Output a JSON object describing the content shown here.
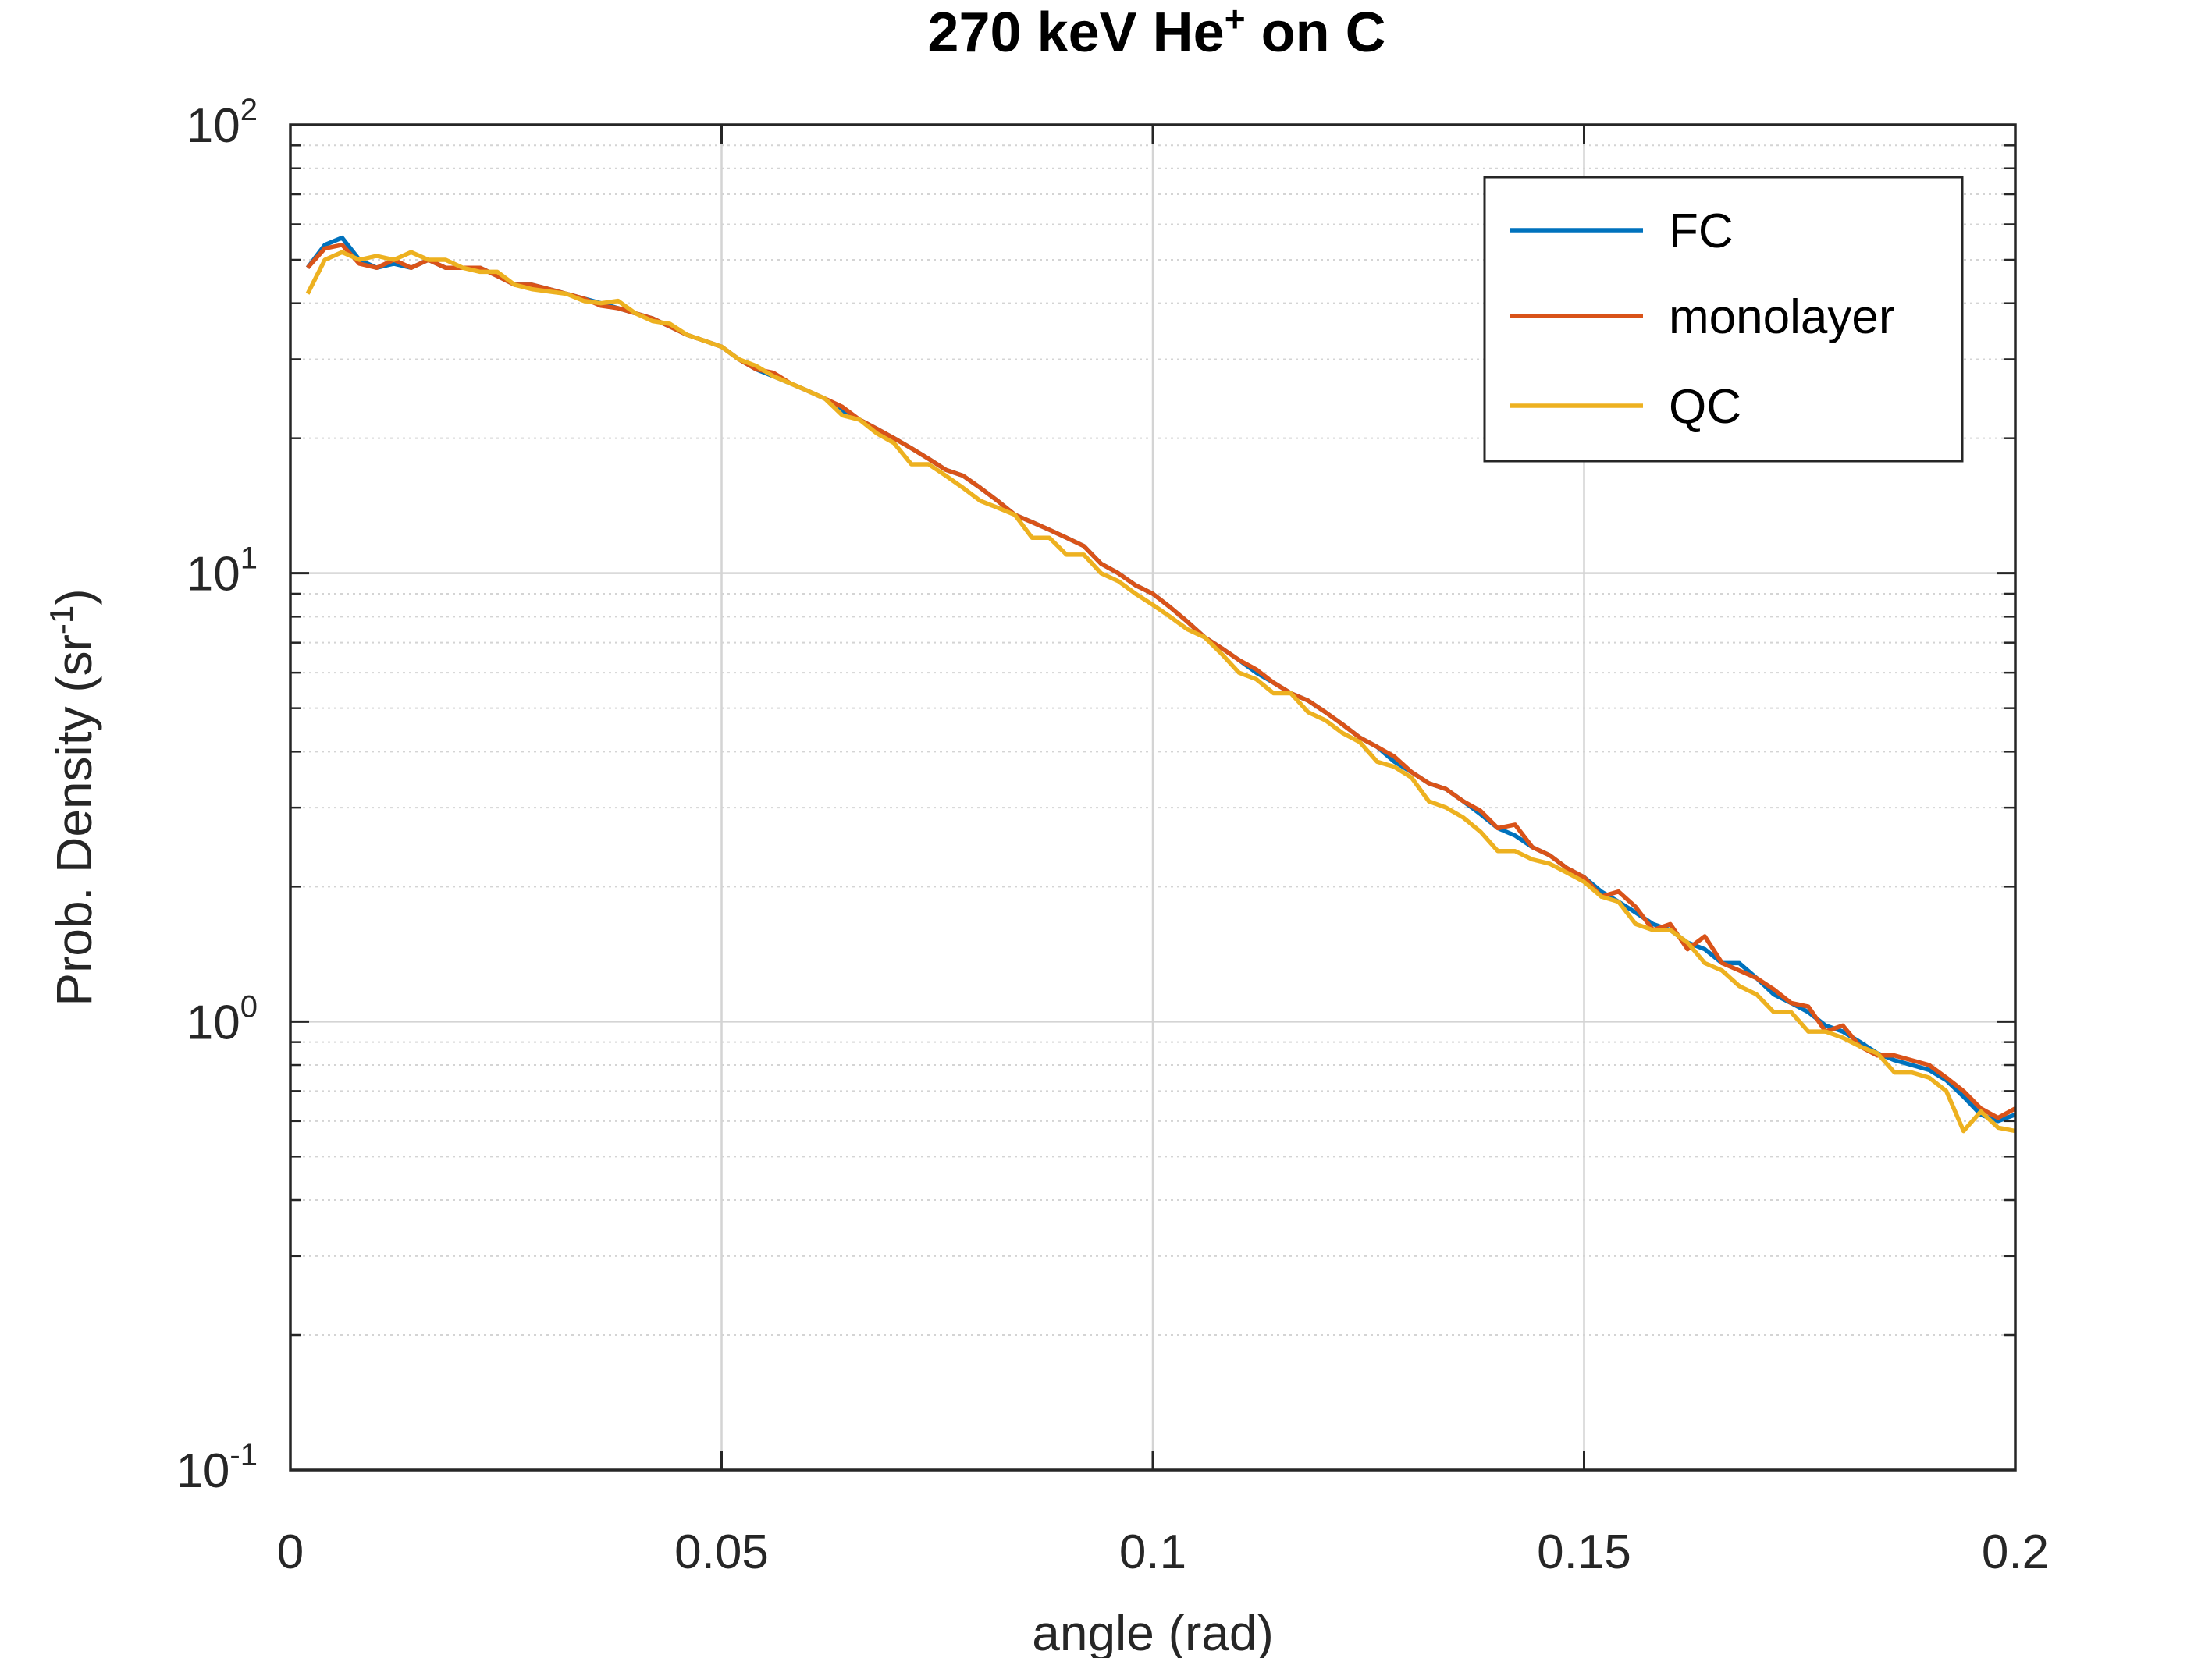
{
  "chart_data": {
    "type": "line",
    "title": {
      "main": "270 keV He",
      "sup": "+",
      "tail": " on C"
    },
    "xlabel": "angle (rad)",
    "ylabel": {
      "main": "Prob. Density (sr",
      "sup": "-1",
      "tail": ")"
    },
    "xlim": [
      0,
      0.2
    ],
    "ylim": [
      0.1,
      100
    ],
    "y_scale": "log",
    "x_ticks": [
      {
        "value": 0,
        "label": "0"
      },
      {
        "value": 0.05,
        "label": "0.05"
      },
      {
        "value": 0.1,
        "label": "0.1"
      },
      {
        "value": 0.15,
        "label": "0.15"
      },
      {
        "value": 0.2,
        "label": "0.2"
      }
    ],
    "y_ticks": [
      {
        "value": 0.1,
        "base": "10",
        "exp": "-1"
      },
      {
        "value": 1,
        "base": "10",
        "exp": "0"
      },
      {
        "value": 10,
        "base": "10",
        "exp": "1"
      },
      {
        "value": 100,
        "base": "10",
        "exp": "2"
      }
    ],
    "grid": true,
    "minor_grid": true,
    "legend_position": "top-right",
    "colors": {
      "FC": "#0072BD",
      "monolayer": "#D95319",
      "QC": "#EDB120",
      "axis": "#262626",
      "grid": "#d4d4d4"
    },
    "series": [
      {
        "name": "FC",
        "x": [
          0.002,
          0.004,
          0.006,
          0.008,
          0.01,
          0.012,
          0.014,
          0.016,
          0.018,
          0.02,
          0.022,
          0.024,
          0.026,
          0.028,
          0.03,
          0.032,
          0.034,
          0.036,
          0.038,
          0.04,
          0.042,
          0.044,
          0.046,
          0.048,
          0.05,
          0.052,
          0.054,
          0.056,
          0.058,
          0.06,
          0.062,
          0.064,
          0.066,
          0.068,
          0.07,
          0.072,
          0.074,
          0.076,
          0.078,
          0.08,
          0.082,
          0.084,
          0.086,
          0.088,
          0.09,
          0.092,
          0.094,
          0.096,
          0.098,
          0.1,
          0.102,
          0.104,
          0.106,
          0.108,
          0.11,
          0.112,
          0.114,
          0.116,
          0.118,
          0.12,
          0.122,
          0.124,
          0.126,
          0.128,
          0.13,
          0.132,
          0.134,
          0.136,
          0.138,
          0.14,
          0.142,
          0.144,
          0.146,
          0.148,
          0.15,
          0.152,
          0.154,
          0.156,
          0.158,
          0.16,
          0.162,
          0.164,
          0.166,
          0.168,
          0.17,
          0.172,
          0.174,
          0.176,
          0.178,
          0.18,
          0.182,
          0.184,
          0.186,
          0.188,
          0.19,
          0.192,
          0.194,
          0.196,
          0.198,
          0.2
        ],
        "y": [
          48,
          54,
          56,
          50,
          48,
          49,
          48,
          50,
          48,
          48,
          48,
          46,
          44,
          44,
          43,
          42,
          41,
          40,
          39,
          38,
          37,
          35.5,
          34,
          33,
          32,
          30,
          28.5,
          27.5,
          26.5,
          25.5,
          24.5,
          23,
          22,
          21,
          20,
          19,
          18,
          17,
          16.5,
          15.5,
          14.5,
          13.5,
          13,
          12.5,
          12,
          11.5,
          10.5,
          10,
          9.4,
          9,
          8.4,
          7.8,
          7.2,
          6.8,
          6.4,
          6,
          5.7,
          5.4,
          5.2,
          4.9,
          4.6,
          4.3,
          4.1,
          3.8,
          3.6,
          3.4,
          3.3,
          3.1,
          2.9,
          2.7,
          2.6,
          2.45,
          2.35,
          2.2,
          2.1,
          1.95,
          1.85,
          1.75,
          1.65,
          1.6,
          1.5,
          1.45,
          1.35,
          1.35,
          1.25,
          1.15,
          1.1,
          1.05,
          0.98,
          0.95,
          0.9,
          0.85,
          0.82,
          0.8,
          0.78,
          0.74,
          0.68,
          0.62,
          0.6,
          0.62
        ]
      },
      {
        "name": "monolayer",
        "x": [
          0.002,
          0.004,
          0.006,
          0.008,
          0.01,
          0.012,
          0.014,
          0.016,
          0.018,
          0.02,
          0.022,
          0.024,
          0.026,
          0.028,
          0.03,
          0.032,
          0.034,
          0.036,
          0.038,
          0.04,
          0.042,
          0.044,
          0.046,
          0.048,
          0.05,
          0.052,
          0.054,
          0.056,
          0.058,
          0.06,
          0.062,
          0.064,
          0.066,
          0.068,
          0.07,
          0.072,
          0.074,
          0.076,
          0.078,
          0.08,
          0.082,
          0.084,
          0.086,
          0.088,
          0.09,
          0.092,
          0.094,
          0.096,
          0.098,
          0.1,
          0.102,
          0.104,
          0.106,
          0.108,
          0.11,
          0.112,
          0.114,
          0.116,
          0.118,
          0.12,
          0.122,
          0.124,
          0.126,
          0.128,
          0.13,
          0.132,
          0.134,
          0.136,
          0.138,
          0.14,
          0.142,
          0.144,
          0.146,
          0.148,
          0.15,
          0.152,
          0.154,
          0.156,
          0.158,
          0.16,
          0.162,
          0.164,
          0.166,
          0.168,
          0.17,
          0.172,
          0.174,
          0.176,
          0.178,
          0.18,
          0.182,
          0.184,
          0.186,
          0.188,
          0.19,
          0.192,
          0.194,
          0.196,
          0.198,
          0.2
        ],
        "y": [
          48,
          53,
          54,
          49,
          48,
          50,
          48,
          50,
          48,
          48,
          48,
          46,
          44,
          44,
          43,
          42,
          41,
          39.5,
          39,
          38,
          37,
          35.5,
          34,
          33,
          32,
          30,
          28.5,
          28,
          26.5,
          25.5,
          24.5,
          23.5,
          22,
          21,
          20,
          19,
          18,
          17,
          16.5,
          15.5,
          14.5,
          13.5,
          13,
          12.5,
          12,
          11.5,
          10.5,
          10,
          9.4,
          9,
          8.4,
          7.8,
          7.2,
          6.8,
          6.4,
          6.1,
          5.7,
          5.4,
          5.2,
          4.9,
          4.6,
          4.3,
          4.1,
          3.9,
          3.6,
          3.4,
          3.3,
          3.1,
          2.95,
          2.7,
          2.75,
          2.45,
          2.35,
          2.2,
          2.1,
          1.9,
          1.95,
          1.8,
          1.6,
          1.65,
          1.45,
          1.55,
          1.35,
          1.3,
          1.25,
          1.18,
          1.1,
          1.08,
          0.95,
          0.98,
          0.88,
          0.84,
          0.84,
          0.82,
          0.8,
          0.75,
          0.7,
          0.64,
          0.61,
          0.64
        ]
      },
      {
        "name": "QC",
        "x": [
          0.002,
          0.004,
          0.006,
          0.008,
          0.01,
          0.012,
          0.014,
          0.016,
          0.018,
          0.02,
          0.022,
          0.024,
          0.026,
          0.028,
          0.03,
          0.032,
          0.034,
          0.036,
          0.038,
          0.04,
          0.042,
          0.044,
          0.046,
          0.048,
          0.05,
          0.052,
          0.054,
          0.056,
          0.058,
          0.06,
          0.062,
          0.064,
          0.066,
          0.068,
          0.07,
          0.072,
          0.074,
          0.076,
          0.078,
          0.08,
          0.082,
          0.084,
          0.086,
          0.088,
          0.09,
          0.092,
          0.094,
          0.096,
          0.098,
          0.1,
          0.102,
          0.104,
          0.106,
          0.108,
          0.11,
          0.112,
          0.114,
          0.116,
          0.118,
          0.12,
          0.122,
          0.124,
          0.126,
          0.128,
          0.13,
          0.132,
          0.134,
          0.136,
          0.138,
          0.14,
          0.142,
          0.144,
          0.146,
          0.148,
          0.15,
          0.152,
          0.154,
          0.156,
          0.158,
          0.16,
          0.162,
          0.164,
          0.166,
          0.168,
          0.17,
          0.172,
          0.174,
          0.176,
          0.178,
          0.18,
          0.182,
          0.184,
          0.186,
          0.188,
          0.19,
          0.192,
          0.194,
          0.196,
          0.198,
          0.2
        ],
        "y": [
          42,
          50,
          52,
          50,
          51,
          50,
          52,
          50,
          50,
          48,
          47,
          47,
          44,
          43,
          42.5,
          42,
          40.5,
          40,
          40.5,
          38,
          36.5,
          36,
          34,
          33,
          32,
          30,
          29,
          27.5,
          26.5,
          25.5,
          24.5,
          22.5,
          22,
          20.5,
          19.5,
          17.5,
          17.5,
          16.5,
          15.5,
          14.5,
          14,
          13.5,
          12,
          12,
          11,
          11,
          10,
          9.6,
          9,
          8.5,
          8,
          7.5,
          7.2,
          6.6,
          6,
          5.8,
          5.4,
          5.4,
          4.9,
          4.7,
          4.4,
          4.2,
          3.8,
          3.7,
          3.5,
          3.1,
          3.0,
          2.85,
          2.65,
          2.4,
          2.4,
          2.3,
          2.25,
          2.15,
          2.05,
          1.9,
          1.85,
          1.65,
          1.6,
          1.6,
          1.5,
          1.35,
          1.3,
          1.2,
          1.15,
          1.05,
          1.05,
          0.95,
          0.95,
          0.92,
          0.88,
          0.85,
          0.77,
          0.77,
          0.75,
          0.7,
          0.57,
          0.63,
          0.58,
          0.57
        ]
      }
    ]
  }
}
